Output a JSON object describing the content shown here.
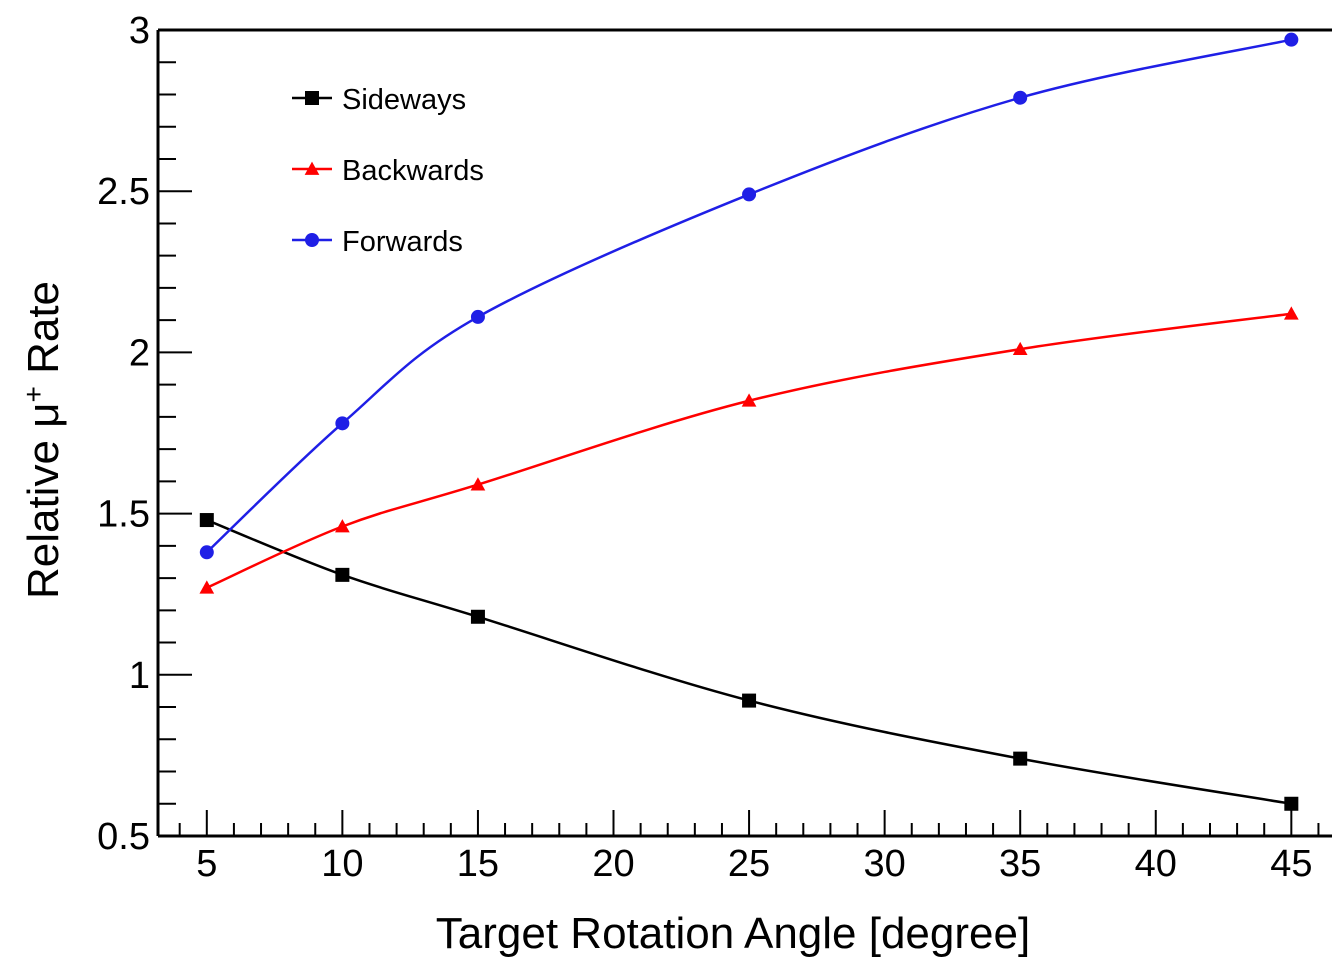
{
  "chart_data": {
    "type": "line",
    "title": "",
    "xlabel": "Target Rotation Angle [degree]",
    "ylabel": {
      "prefix": "Relative ",
      "symbol": "μ",
      "superscript": "+",
      "suffix": " Rate"
    },
    "xlim": [
      3.2,
      46.5
    ],
    "ylim": [
      0.5,
      3
    ],
    "x_ticks": [
      {
        "value": 5,
        "label": "5"
      },
      {
        "value": 10,
        "label": "10"
      },
      {
        "value": 15,
        "label": "15"
      },
      {
        "value": 20,
        "label": "20"
      },
      {
        "value": 25,
        "label": "25"
      },
      {
        "value": 30,
        "label": "30"
      },
      {
        "value": 35,
        "label": "35"
      },
      {
        "value": 40,
        "label": "40"
      },
      {
        "value": 45,
        "label": "45"
      }
    ],
    "y_ticks": [
      {
        "value": 0.5,
        "label": "0.5"
      },
      {
        "value": 1,
        "label": "1"
      },
      {
        "value": 1.5,
        "label": "1.5"
      },
      {
        "value": 2,
        "label": "2"
      },
      {
        "value": 2.5,
        "label": "2.5"
      },
      {
        "value": 3,
        "label": "3"
      }
    ],
    "grid": false,
    "legend_position": "top-left",
    "x": [
      5,
      10,
      15,
      25,
      35,
      45
    ],
    "series": [
      {
        "name": "Sideways",
        "color": "#000000",
        "marker": "square",
        "values": [
          1.48,
          1.31,
          1.18,
          0.92,
          0.74,
          0.6
        ]
      },
      {
        "name": "Backwards",
        "color": "#ff0000",
        "marker": "triangle",
        "values": [
          1.27,
          1.46,
          1.59,
          1.85,
          2.01,
          2.12
        ]
      },
      {
        "name": "Forwards",
        "color": "#1f1fe6",
        "marker": "circle",
        "values": [
          1.38,
          1.78,
          2.11,
          2.49,
          2.79,
          2.97
        ]
      }
    ]
  }
}
